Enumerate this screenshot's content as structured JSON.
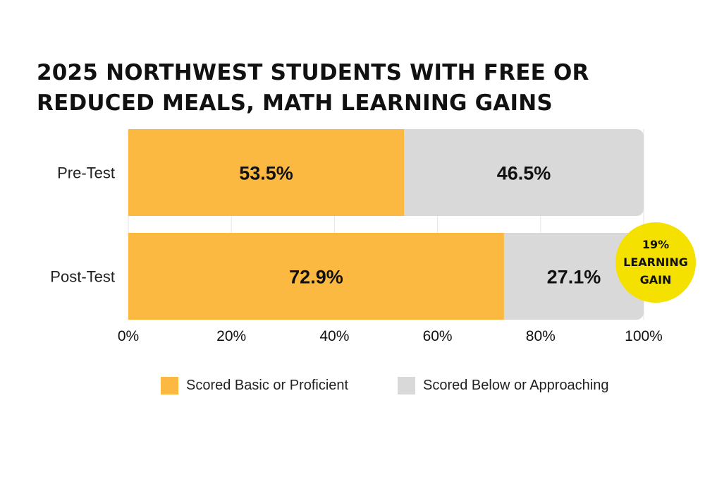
{
  "title_lines": [
    "2025 NORTHWEST STUDENTS WITH FREE OR",
    "REDUCED MEALS, MATH LEARNING GAINS"
  ],
  "colors": {
    "basic": "#FBB941",
    "below": "#D9D9D9",
    "badge": "#F5E100",
    "grid": "#E6E6E6"
  },
  "chart_data": {
    "type": "bar",
    "orientation": "horizontal",
    "stacked": true,
    "title": "2025 NORTHWEST STUDENTS WITH FREE OR REDUCED MEALS, MATH LEARNING GAINS",
    "categories": [
      "Pre-Test",
      "Post-Test"
    ],
    "series": [
      {
        "name": "Scored Basic or Proficient",
        "values": [
          53.5,
          72.9
        ],
        "labels": [
          "53.5%",
          "72.9%"
        ]
      },
      {
        "name": "Scored Below or Approaching",
        "values": [
          46.5,
          27.1
        ],
        "labels": [
          "46.5%",
          "27.1%"
        ]
      }
    ],
    "xlim": [
      0,
      100
    ],
    "x_ticks": [
      "0%",
      "20%",
      "40%",
      "60%",
      "80%",
      "100%"
    ],
    "grid": true,
    "legend_position": "bottom",
    "annotation": {
      "lines": [
        "19%",
        "LEARNING",
        "GAIN"
      ],
      "attached_to": "Post-Test"
    }
  }
}
